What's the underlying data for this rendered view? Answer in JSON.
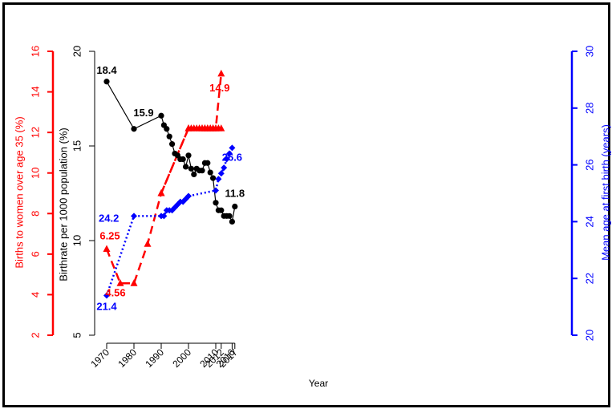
{
  "chart_data": {
    "type": "line",
    "xlabel": "Year",
    "x_ticks": [
      1970,
      1980,
      1990,
      2000,
      2010,
      2012,
      2016,
      2017
    ],
    "axes": {
      "left_outer": {
        "label": "Births to women over age 35 (%)",
        "ylim": [
          2,
          16
        ],
        "ticks": [
          2,
          4,
          6,
          8,
          10,
          12,
          14,
          16
        ],
        "color": "#ff0000"
      },
      "left_inner": {
        "label": "Birthrate per 1000 population (%)",
        "ylim": [
          5,
          20
        ],
        "ticks": [
          5,
          10,
          15,
          20
        ],
        "color": "#000000"
      },
      "right": {
        "label": "Mean age at first birth (years)",
        "ylim": [
          20,
          30
        ],
        "ticks": [
          20,
          22,
          24,
          26,
          28,
          30
        ],
        "color": "#0000ff"
      }
    },
    "series": [
      {
        "axis": "left_outer",
        "color": "#ff0000",
        "style": "dashed",
        "marker": "triangle",
        "x": [
          1970,
          1975,
          1980,
          1985,
          1990,
          2000,
          2005,
          2006,
          2007,
          2008,
          2009,
          2010,
          2011,
          2012
        ],
        "y": [
          6.25,
          4.56,
          4.56,
          6.5,
          9.0,
          12.2,
          12.2,
          12.2,
          12.2,
          12.2,
          12.2,
          12.2,
          12.2,
          12.2
        ]
      },
      {
        "axis": "left_outer",
        "color": "#ff0000",
        "style": "dashed",
        "marker": "triangle",
        "x": [
          1990,
          2000,
          2001,
          2002,
          2003,
          2004,
          2005,
          2006,
          2007,
          2008,
          2009,
          2010,
          2012
        ],
        "y": [
          9.0,
          12.2,
          12.2,
          12.2,
          12.2,
          12.2,
          12.2,
          12.2,
          12.2,
          12.2,
          12.2,
          12.2,
          14.9
        ]
      },
      {
        "axis": "left_inner",
        "color": "#000000",
        "style": "solid",
        "marker": "circle",
        "x": [
          1970,
          1980,
          1990,
          1991,
          1992,
          1993,
          1994,
          1995,
          1996,
          1997,
          1998,
          1999,
          2000,
          2001,
          2002,
          2003,
          2004,
          2005,
          2006,
          2007,
          2008,
          2009,
          2010,
          2011,
          2012,
          2013,
          2014,
          2015,
          2016,
          2017
        ],
        "y": [
          18.4,
          15.9,
          16.6,
          16.1,
          15.9,
          15.5,
          15.1,
          14.6,
          14.5,
          14.3,
          14.3,
          13.9,
          14.5,
          13.8,
          13.5,
          13.8,
          13.7,
          13.7,
          14.1,
          14.1,
          13.6,
          13.3,
          12.0,
          11.6,
          11.6,
          11.3,
          11.3,
          11.3,
          11.0,
          11.8
        ]
      },
      {
        "axis": "right",
        "color": "#0000ff",
        "style": "dotted",
        "marker": "diamond",
        "x": [
          1970,
          1980,
          1990,
          1991,
          1992,
          1993,
          1994,
          1995,
          1996,
          1997,
          1998,
          1999,
          2000,
          2010,
          2011,
          2012,
          2013,
          2014,
          2015,
          2016
        ],
        "y": [
          21.4,
          24.2,
          24.2,
          24.2,
          24.4,
          24.4,
          24.4,
          24.5,
          24.6,
          24.7,
          24.7,
          24.8,
          24.9,
          25.1,
          25.5,
          25.7,
          25.9,
          26.2,
          26.4,
          26.6
        ]
      }
    ],
    "annotations": [
      {
        "text": "18.4",
        "color": "#000000"
      },
      {
        "text": "15.9",
        "color": "#000000"
      },
      {
        "text": "11.8",
        "color": "#000000"
      },
      {
        "text": "6.25",
        "color": "#ff0000"
      },
      {
        "text": "4.56",
        "color": "#ff0000"
      },
      {
        "text": "14.9",
        "color": "#ff0000"
      },
      {
        "text": "24.2",
        "color": "#0000ff"
      },
      {
        "text": "21.4",
        "color": "#0000ff"
      },
      {
        "text": "26.6",
        "color": "#0000ff"
      }
    ]
  }
}
